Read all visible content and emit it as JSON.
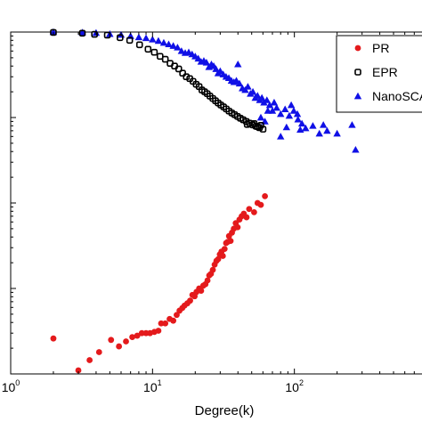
{
  "chart_data": {
    "type": "scatter",
    "title": "",
    "xlabel": "Degree(k)",
    "ylabel": "",
    "xscale": "log",
    "yscale": "log",
    "xlim": [
      1,
      1000
    ],
    "ylim": [
      0.0001,
      1
    ],
    "grid": false,
    "legend_position": "top-right",
    "x_tick_labels": [
      {
        "value": 1,
        "base": "10",
        "exp": "0"
      },
      {
        "value": 10,
        "base": "10",
        "exp": "1"
      },
      {
        "value": 100,
        "base": "10",
        "exp": "2"
      }
    ],
    "series": [
      {
        "name": "PR",
        "marker": "filled-circle",
        "color": "#e41a1c",
        "points": [
          [
            2.0,
            0.00026
          ],
          [
            3.0,
            0.00011
          ],
          [
            3.6,
            0.000145
          ],
          [
            4.2,
            0.00018
          ],
          [
            5.1,
            0.00025
          ],
          [
            5.8,
            0.00021
          ],
          [
            6.5,
            0.00024
          ],
          [
            7.2,
            0.00027
          ],
          [
            7.8,
            0.00028
          ],
          [
            8.4,
            0.0003
          ],
          [
            9.0,
            0.0003
          ],
          [
            9.6,
            0.0003
          ],
          [
            10.3,
            0.00031
          ],
          [
            11.0,
            0.00032
          ],
          [
            11.5,
            0.00039
          ],
          [
            12.3,
            0.00039
          ],
          [
            13.2,
            0.00044
          ],
          [
            14.0,
            0.00042
          ],
          [
            14.8,
            0.00049
          ],
          [
            15.5,
            0.00055
          ],
          [
            16.2,
            0.00059
          ],
          [
            16.8,
            0.00063
          ],
          [
            17.6,
            0.00067
          ],
          [
            18.4,
            0.00072
          ],
          [
            19.1,
            0.00084
          ],
          [
            19.8,
            0.00081
          ],
          [
            20.4,
            0.00091
          ],
          [
            21.3,
            0.001
          ],
          [
            22.0,
            0.00094
          ],
          [
            22.8,
            0.00108
          ],
          [
            23.6,
            0.00112
          ],
          [
            24.4,
            0.00124
          ],
          [
            25.1,
            0.00142
          ],
          [
            25.8,
            0.00148
          ],
          [
            26.6,
            0.00165
          ],
          [
            27.4,
            0.0019
          ],
          [
            28.2,
            0.0021
          ],
          [
            29.0,
            0.0022
          ],
          [
            29.8,
            0.0025
          ],
          [
            30.6,
            0.0027
          ],
          [
            31.3,
            0.0024
          ],
          [
            32.2,
            0.0029
          ],
          [
            33.0,
            0.0034
          ],
          [
            33.8,
            0.0035
          ],
          [
            34.6,
            0.0041
          ],
          [
            35.5,
            0.0036
          ],
          [
            36.3,
            0.0045
          ],
          [
            37.4,
            0.005
          ],
          [
            38.6,
            0.0058
          ],
          [
            39.8,
            0.0052
          ],
          [
            41.0,
            0.0064
          ],
          [
            42.5,
            0.007
          ],
          [
            44.0,
            0.0075
          ],
          [
            46.0,
            0.0068
          ],
          [
            48.0,
            0.0085
          ],
          [
            52.0,
            0.0078
          ],
          [
            55.0,
            0.01
          ],
          [
            58.0,
            0.0095
          ],
          [
            62.0,
            0.012
          ]
        ]
      },
      {
        "name": "EPR",
        "marker": "open-square",
        "color": "#000000",
        "points": [
          [
            2.0,
            0.99
          ],
          [
            3.2,
            0.97
          ],
          [
            3.9,
            0.94
          ],
          [
            4.8,
            0.92
          ],
          [
            5.9,
            0.86
          ],
          [
            6.9,
            0.8
          ],
          [
            8.1,
            0.71
          ],
          [
            9.3,
            0.63
          ],
          [
            10.3,
            0.58
          ],
          [
            11.3,
            0.52
          ],
          [
            12.3,
            0.48
          ],
          [
            13.3,
            0.43
          ],
          [
            14.3,
            0.4
          ],
          [
            15.3,
            0.37
          ],
          [
            16.3,
            0.33
          ],
          [
            17.3,
            0.3
          ],
          [
            18.3,
            0.285
          ],
          [
            19.3,
            0.265
          ],
          [
            20.3,
            0.245
          ],
          [
            21.3,
            0.23
          ],
          [
            22.3,
            0.21
          ],
          [
            23.3,
            0.2
          ],
          [
            24.3,
            0.19
          ],
          [
            25.4,
            0.178
          ],
          [
            26.6,
            0.167
          ],
          [
            27.8,
            0.157
          ],
          [
            29.0,
            0.148
          ],
          [
            30.3,
            0.14
          ],
          [
            31.7,
            0.133
          ],
          [
            33.1,
            0.126
          ],
          [
            34.6,
            0.119
          ],
          [
            36.2,
            0.113
          ],
          [
            37.9,
            0.108
          ],
          [
            39.7,
            0.103
          ],
          [
            41.6,
            0.098
          ],
          [
            43.6,
            0.094
          ],
          [
            45.8,
            0.09
          ],
          [
            48.2,
            0.086
          ],
          [
            50.8,
            0.082
          ],
          [
            53.6,
            0.079
          ],
          [
            56.7,
            0.076
          ],
          [
            60.1,
            0.073
          ],
          [
            55.0,
            0.078
          ],
          [
            46.5,
            0.083
          ],
          [
            52.0,
            0.085
          ],
          [
            58.0,
            0.081
          ]
        ]
      },
      {
        "name": "NanoSCAN",
        "marker": "filled-triangle",
        "color": "#1010e6",
        "points": [
          [
            2.0,
            1.0
          ],
          [
            3.2,
            0.99
          ],
          [
            4.0,
            0.98
          ],
          [
            5.0,
            0.95
          ],
          [
            6.0,
            0.93
          ],
          [
            7.0,
            0.9
          ],
          [
            8.0,
            0.87
          ],
          [
            9.0,
            0.85
          ],
          [
            10.0,
            0.82
          ],
          [
            11.0,
            0.79
          ],
          [
            12.0,
            0.75
          ],
          [
            13.0,
            0.72
          ],
          [
            14.0,
            0.69
          ],
          [
            15.0,
            0.66
          ],
          [
            16.0,
            0.6
          ],
          [
            17.0,
            0.57
          ],
          [
            18.0,
            0.58
          ],
          [
            19.0,
            0.55
          ],
          [
            20.0,
            0.52
          ],
          [
            21.0,
            0.49
          ],
          [
            22.0,
            0.45
          ],
          [
            23.0,
            0.46
          ],
          [
            24.0,
            0.44
          ],
          [
            25.0,
            0.39
          ],
          [
            26.0,
            0.42
          ],
          [
            27.0,
            0.4
          ],
          [
            28.0,
            0.37
          ],
          [
            29.0,
            0.33
          ],
          [
            30.0,
            0.35
          ],
          [
            31.5,
            0.32
          ],
          [
            33.0,
            0.3
          ],
          [
            34.5,
            0.29
          ],
          [
            36.0,
            0.27
          ],
          [
            37.5,
            0.26
          ],
          [
            39.0,
            0.27
          ],
          [
            41.0,
            0.25
          ],
          [
            43.0,
            0.22
          ],
          [
            45.0,
            0.21
          ],
          [
            47.0,
            0.23
          ],
          [
            49.0,
            0.19
          ],
          [
            51.0,
            0.2
          ],
          [
            53.0,
            0.17
          ],
          [
            55.0,
            0.18
          ],
          [
            57.0,
            0.16
          ],
          [
            59.0,
            0.17
          ],
          [
            61.0,
            0.15
          ],
          [
            64.0,
            0.16
          ],
          [
            67.0,
            0.14
          ],
          [
            70.0,
            0.12
          ],
          [
            75.0,
            0.13
          ],
          [
            80.0,
            0.11
          ],
          [
            86.0,
            0.125
          ],
          [
            92.0,
            0.105
          ],
          [
            99.0,
            0.12
          ],
          [
            106.0,
            0.095
          ],
          [
            113.0,
            0.085
          ],
          [
            120.0,
            0.075
          ],
          [
            135.0,
            0.08
          ],
          [
            150.0,
            0.065
          ],
          [
            170.0,
            0.07
          ],
          [
            200.0,
            0.065
          ],
          [
            255.0,
            0.082
          ],
          [
            270.0,
            0.042
          ],
          [
            40.0,
            0.42
          ],
          [
            65.0,
            0.12
          ],
          [
            80.0,
            0.06
          ],
          [
            88.0,
            0.077
          ],
          [
            110.0,
            0.072
          ],
          [
            160.0,
            0.082
          ],
          [
            62.0,
            0.09
          ],
          [
            58.0,
            0.1
          ],
          [
            72.0,
            0.15
          ],
          [
            95.0,
            0.14
          ],
          [
            105.0,
            0.11
          ]
        ]
      }
    ]
  }
}
